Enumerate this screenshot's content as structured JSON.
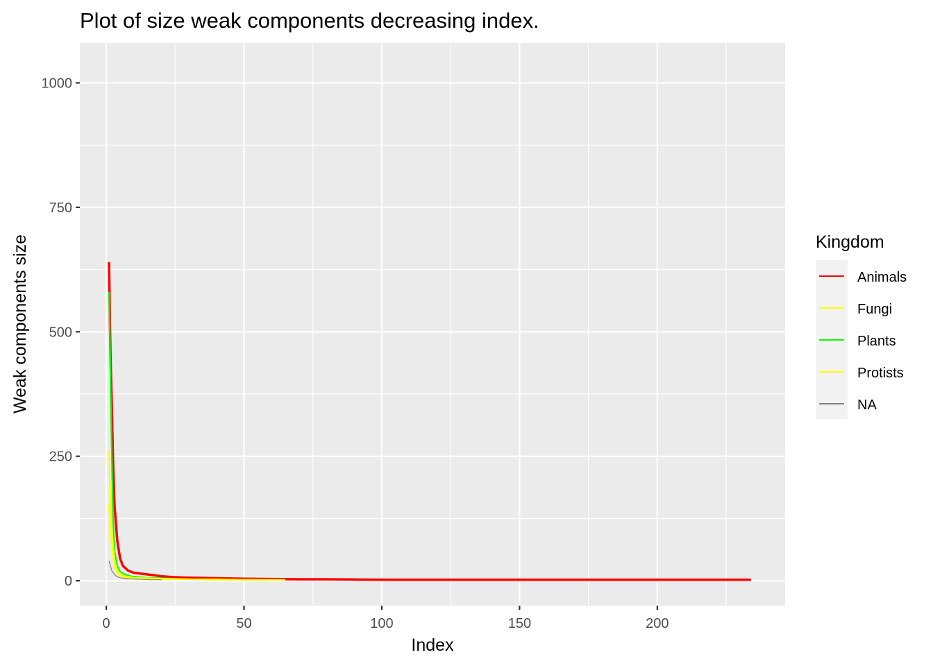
{
  "chart_data": {
    "type": "line",
    "title": "Plot  of size  weak components decreasing index.",
    "xlabel": "Index",
    "ylabel": "Weak components size",
    "xlim": [
      -9.6,
      246.4
    ],
    "ylim": [
      -50,
      1080
    ],
    "x_ticks": [
      0,
      50,
      100,
      150,
      200
    ],
    "x_tick_labels": [
      "0",
      "50",
      "100",
      "150",
      "200"
    ],
    "y_ticks": [
      0,
      250,
      500,
      750,
      1000
    ],
    "y_tick_labels": [
      "0",
      "250",
      "500",
      "750",
      "1000"
    ],
    "grid": true,
    "background": "#EBEBEB",
    "legend": {
      "title": "Kingdom",
      "position": "right",
      "entries": [
        {
          "label": "Animals",
          "color": "#FF0000"
        },
        {
          "label": "Fungi",
          "color": "#FFFF00"
        },
        {
          "label": "Plants",
          "color": "#00FF00"
        },
        {
          "label": "Protists",
          "color": "#FFFF00"
        },
        {
          "label": "NA",
          "color": "#808080"
        }
      ]
    },
    "series": [
      {
        "name": "Animals",
        "color": "#FF0000",
        "x": [
          1,
          1.5,
          2,
          2.5,
          3,
          4,
          5,
          6,
          8,
          10,
          13,
          16,
          20,
          25,
          30,
          40,
          50,
          60,
          70,
          80,
          90,
          100,
          120,
          150,
          180,
          200,
          220,
          234
        ],
        "y": [
          640,
          460,
          350,
          230,
          150,
          80,
          45,
          30,
          20,
          16,
          14,
          12,
          9,
          7,
          6,
          5,
          4,
          3.5,
          3,
          3,
          2.5,
          2,
          2,
          2,
          2,
          2,
          2,
          2
        ]
      },
      {
        "name": "Fungi",
        "color": "#FFFF00",
        "x": [
          1,
          1.5,
          2,
          3,
          4,
          6,
          8,
          10,
          15,
          20,
          30,
          40,
          50,
          60,
          65
        ],
        "y": [
          260,
          170,
          100,
          40,
          20,
          10,
          8,
          6,
          5,
          4,
          3,
          3,
          2,
          2,
          2
        ]
      },
      {
        "name": "Plants",
        "color": "#00FF00",
        "x": [
          1,
          1.3,
          1.6,
          2,
          2.5,
          3,
          4,
          5,
          7,
          9,
          12,
          15,
          20,
          25,
          30
        ],
        "y": [
          580,
          500,
          380,
          250,
          120,
          60,
          30,
          18,
          12,
          9,
          7,
          6,
          5,
          4,
          3
        ]
      },
      {
        "name": "Protists",
        "color": "#FFFF00",
        "x": [
          1,
          1.5,
          2,
          3,
          4,
          5,
          7,
          10,
          15,
          20,
          30,
          40,
          50,
          60
        ],
        "y": [
          150,
          110,
          70,
          30,
          15,
          10,
          7,
          5,
          4,
          3,
          3,
          2,
          2,
          2
        ]
      },
      {
        "name": "NA",
        "color": "#808080",
        "x": [
          1,
          2,
          3,
          4,
          5,
          8,
          12,
          16,
          20
        ],
        "y": [
          40,
          20,
          12,
          8,
          6,
          4,
          3,
          2,
          2
        ]
      }
    ]
  }
}
